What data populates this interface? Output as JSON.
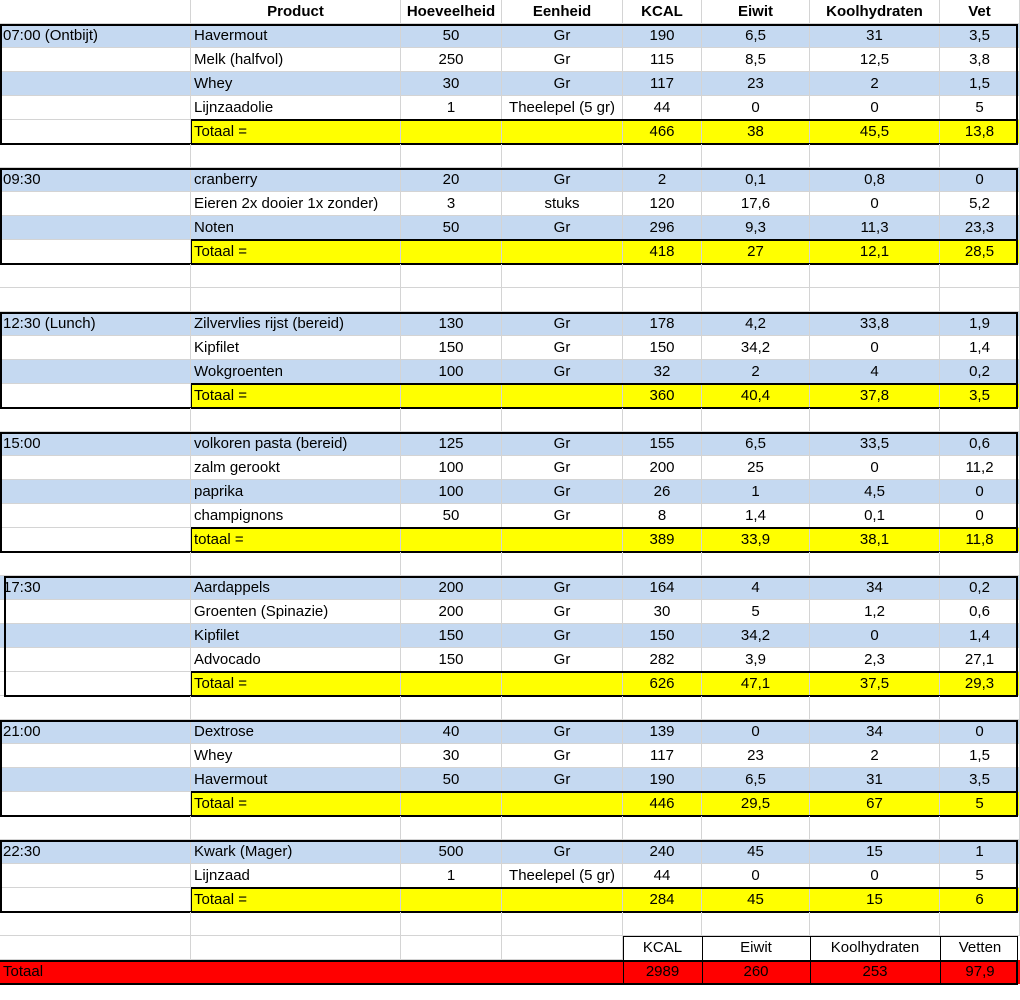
{
  "colors": {
    "alt_row": "#c5d9f1",
    "subtotal": "#ffff00",
    "grand_total": "#ff0000"
  },
  "header": [
    "Product",
    "Hoeveelheid",
    "Eenheid",
    "KCAL",
    "Eiwit",
    "Koolhydraten",
    "Vet"
  ],
  "meals": [
    {
      "time": "07:00 (Ontbijt)",
      "items": [
        [
          "Havermout",
          "50",
          "Gr",
          "190",
          "6,5",
          "31",
          "3,5"
        ],
        [
          "Melk (halfvol)",
          "250",
          "Gr",
          "115",
          "8,5",
          "12,5",
          "3,8"
        ],
        [
          "Whey",
          "30",
          "Gr",
          "117",
          "23",
          "2",
          "1,5"
        ],
        [
          "Lijnzaadolie",
          "1",
          "Theelepel (5 gr)",
          "44",
          "0",
          "0",
          "5"
        ]
      ],
      "total": {
        "label": "Totaal =",
        "kcal": "466",
        "eiwit": "38",
        "kh": "45,5",
        "vet": "13,8"
      }
    },
    {
      "time": "09:30",
      "items": [
        [
          "cranberry",
          "20",
          "Gr",
          "2",
          "0,1",
          "0,8",
          "0"
        ],
        [
          "Eieren 2x dooier 1x zonder)",
          "3",
          "stuks",
          "120",
          "17,6",
          "0",
          "5,2"
        ],
        [
          "Noten",
          "50",
          "Gr",
          "296",
          "9,3",
          "11,3",
          "23,3"
        ]
      ],
      "total": {
        "label": "Totaal =",
        "kcal": "418",
        "eiwit": "27",
        "kh": "12,1",
        "vet": "28,5"
      }
    },
    {
      "time": "12:30 (Lunch)",
      "items": [
        [
          "Zilvervlies rijst (bereid)",
          "130",
          "Gr",
          "178",
          "4,2",
          "33,8",
          "1,9"
        ],
        [
          "Kipfilet",
          "150",
          "Gr",
          "150",
          "34,2",
          "0",
          "1,4"
        ],
        [
          "Wokgroenten",
          "100",
          "Gr",
          "32",
          "2",
          "4",
          "0,2"
        ]
      ],
      "total": {
        "label": "Totaal =",
        "kcal": "360",
        "eiwit": "40,4",
        "kh": "37,8",
        "vet": "3,5"
      }
    },
    {
      "time": "15:00",
      "items": [
        [
          "volkoren pasta (bereid)",
          "125",
          "Gr",
          "155",
          "6,5",
          "33,5",
          "0,6"
        ],
        [
          "zalm gerookt",
          "100",
          "Gr",
          "200",
          "25",
          "0",
          "11,2"
        ],
        [
          "paprika",
          "100",
          "Gr",
          "26",
          "1",
          "4,5",
          "0"
        ],
        [
          "champignons",
          "50",
          "Gr",
          "8",
          "1,4",
          "0,1",
          "0"
        ]
      ],
      "total": {
        "label": "totaal =",
        "kcal": "389",
        "eiwit": "33,9",
        "kh": "38,1",
        "vet": "11,8"
      }
    },
    {
      "time": "17:30",
      "items": [
        [
          "Aardappels",
          "200",
          "Gr",
          "164",
          "4",
          "34",
          "0,2"
        ],
        [
          "Groenten (Spinazie)",
          "200",
          "Gr",
          "30",
          "5",
          "1,2",
          "0,6"
        ],
        [
          "Kipfilet",
          "150",
          "Gr",
          "150",
          "34,2",
          "0",
          "1,4"
        ],
        [
          "Advocado",
          "150",
          "Gr",
          "282",
          "3,9",
          "2,3",
          "27,1"
        ]
      ],
      "total": {
        "label": "Totaal =",
        "kcal": "626",
        "eiwit": "47,1",
        "kh": "37,5",
        "vet": "29,3"
      }
    },
    {
      "time": "21:00",
      "items": [
        [
          "Dextrose",
          "40",
          "Gr",
          "139",
          "0",
          "34",
          "0"
        ],
        [
          "Whey",
          "30",
          "Gr",
          "117",
          "23",
          "2",
          "1,5"
        ],
        [
          "Havermout",
          "50",
          "Gr",
          "190",
          "6,5",
          "31",
          "3,5"
        ]
      ],
      "total": {
        "label": "Totaal =",
        "kcal": "446",
        "eiwit": "29,5",
        "kh": "67",
        "vet": "5"
      }
    },
    {
      "time": "22:30",
      "items": [
        [
          "Kwark (Mager)",
          "500",
          "Gr",
          "240",
          "45",
          "15",
          "1"
        ],
        [
          "Lijnzaad",
          "1",
          "Theelepel (5 gr)",
          "44",
          "0",
          "0",
          "5"
        ]
      ],
      "total": {
        "label": "Totaal =",
        "kcal": "284",
        "eiwit": "45",
        "kh": "15",
        "vet": "6"
      }
    }
  ],
  "summary": {
    "headers": [
      "KCAL",
      "Eiwit",
      "Koolhydraten",
      "Vetten"
    ],
    "label": "Totaal",
    "values": [
      "2989",
      "260",
      "253",
      "97,9"
    ]
  }
}
